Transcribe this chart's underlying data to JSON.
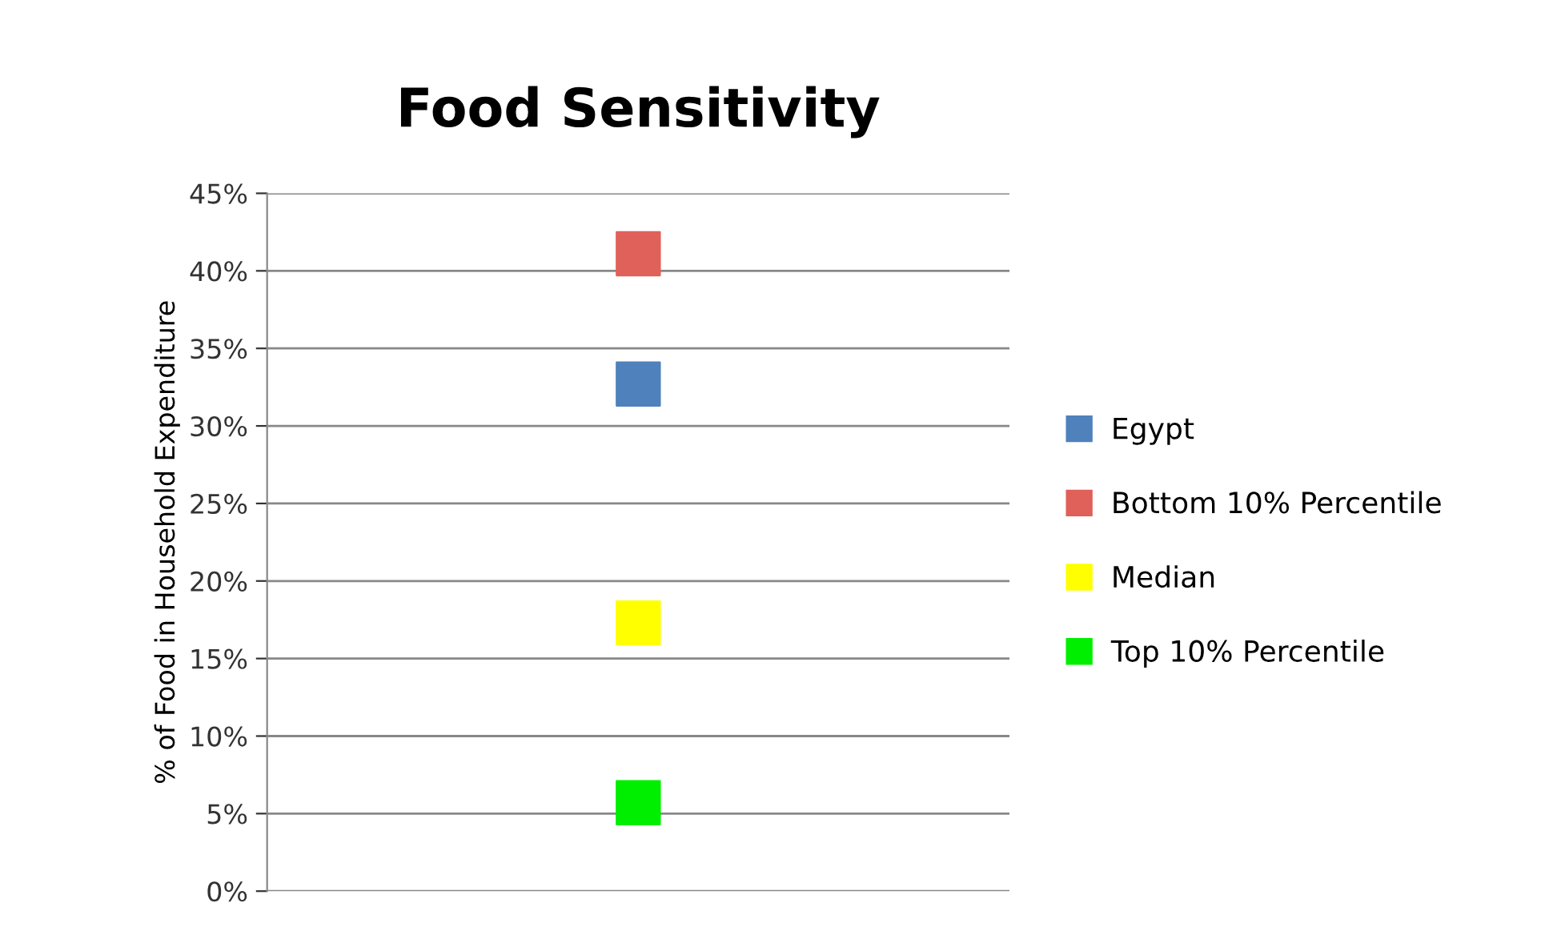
{
  "chart_data": {
    "type": "scatter",
    "title": "Food Sensitivity",
    "ylabel": "% of Food in Household Expenditure",
    "categories": [
      null
    ],
    "series": [
      {
        "name": "Egypt",
        "color": "#4f81bd",
        "values": [
          32.7
        ]
      },
      {
        "name": "Bottom 10% Percentile",
        "color": "#e0605a",
        "values": [
          41.1
        ]
      },
      {
        "name": "Median",
        "color": "#ffff00",
        "values": [
          17.3
        ]
      },
      {
        "name": "Top 10% Percentile",
        "color": "#00ee00",
        "values": [
          5.7
        ]
      }
    ],
    "marker": "square",
    "grid": "y",
    "legend": "right",
    "ylim": [
      0,
      45
    ],
    "yticks": [
      {
        "value": 0,
        "label": "0%"
      },
      {
        "value": 5,
        "label": "5%"
      },
      {
        "value": 10,
        "label": "10%"
      },
      {
        "value": 15,
        "label": "15%"
      },
      {
        "value": 20,
        "label": "20%"
      },
      {
        "value": 25,
        "label": "25%"
      },
      {
        "value": 30,
        "label": "30%"
      },
      {
        "value": 35,
        "label": "35%"
      },
      {
        "value": 40,
        "label": "40%"
      },
      {
        "value": 45,
        "label": "45%"
      }
    ]
  }
}
